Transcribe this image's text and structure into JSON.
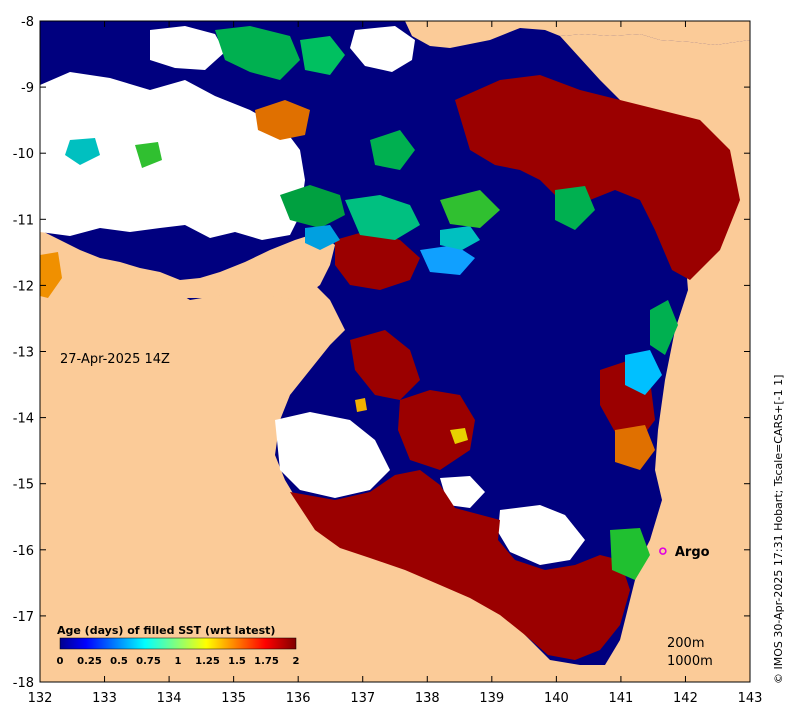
{
  "map": {
    "date_label": "27-Apr-2025 14Z",
    "credit": "© IMOS 30-Apr-2025 17:31 Hobart; Tscale=CARS+[-1 1]",
    "depth_legend": [
      "200m",
      "1000m"
    ],
    "argo": {
      "label": "Argo",
      "lon": 141.65,
      "lat": -16.02,
      "color": "#e000e0"
    },
    "x_ticks": [
      "132",
      "133",
      "134",
      "135",
      "136",
      "137",
      "138",
      "139",
      "140",
      "141",
      "142",
      "143"
    ],
    "y_ticks": [
      "-8",
      "-9",
      "-10",
      "-11",
      "-12",
      "-13",
      "-14",
      "-15",
      "-16",
      "-17",
      "-18"
    ],
    "lon_range": [
      132,
      143
    ],
    "lat_range": [
      -18,
      -8
    ],
    "colors": {
      "land": "#fbcb98",
      "no_data": "#ffffff",
      "fresh": "#00007f",
      "stale": "#9b0000"
    }
  },
  "colorbar": {
    "title": "Age (days) of filled SST (wrt latest)",
    "labels": [
      "0",
      "0.25",
      "0.5",
      "0.75",
      "1",
      "1.25",
      "1.5",
      "1.75",
      "2"
    ],
    "range": [
      0,
      2
    ],
    "scale": "jet"
  }
}
